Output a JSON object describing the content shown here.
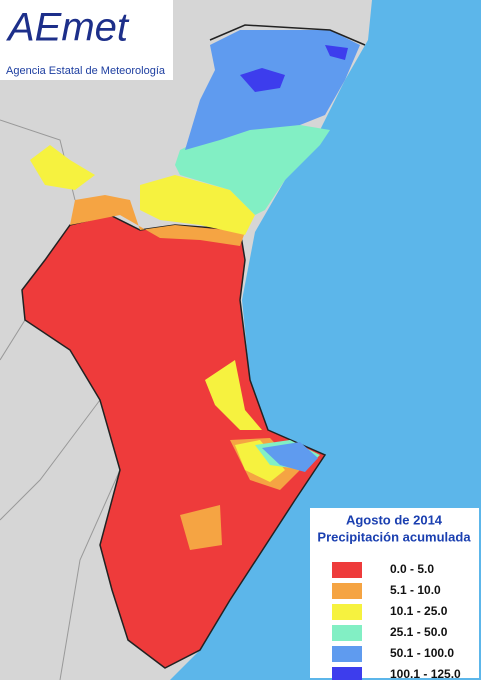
{
  "logo": {
    "brand": "AEmet",
    "agency": "Agencia Estatal de Meteorología"
  },
  "legend": {
    "title": "Agosto de 2014",
    "subtitle": "Precipitación acumulada",
    "items": [
      {
        "label": "0.0 - 5.0",
        "color": "#ee3b3b"
      },
      {
        "label": "5.1 - 10.0",
        "color": "#f5a443"
      },
      {
        "label": "10.1 - 25.0",
        "color": "#f6f23f"
      },
      {
        "label": "25.1 - 50.0",
        "color": "#82efc4"
      },
      {
        "label": "50.1 - 100.0",
        "color": "#5f9bef"
      },
      {
        "label": "100.1 - 125.0",
        "color": "#3d3ded"
      }
    ]
  }
}
